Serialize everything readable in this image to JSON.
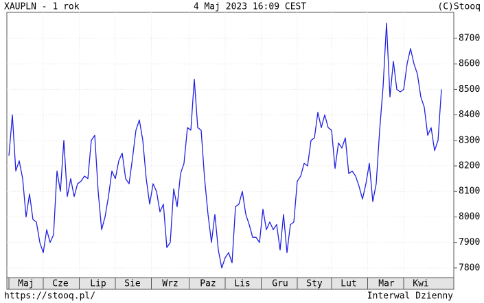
{
  "chart_data": {
    "type": "line",
    "title": "XAUPLN - 1 rok",
    "date": "4 Maj 2023 16:09 CEST",
    "source": "(C)Stooq",
    "url": "https://stooq.pl/",
    "interval": "Interwal Dzienny",
    "categories": [
      null,
      null,
      null,
      null,
      null,
      "Maj",
      null,
      null,
      null,
      null,
      null,
      null,
      null,
      null,
      null,
      "Cze",
      null,
      null,
      null,
      null,
      null,
      null,
      null,
      null,
      null,
      null,
      "Lip",
      null,
      null,
      null,
      null,
      null,
      null,
      null,
      null,
      null,
      "Sie",
      null,
      null,
      null,
      null,
      null,
      null,
      null,
      null,
      null,
      null,
      "Wrz",
      null,
      null,
      null,
      null,
      null,
      null,
      null,
      null,
      null,
      null,
      "Paz",
      null,
      null,
      null,
      null,
      null,
      null,
      null,
      null,
      null,
      "Lis",
      null,
      null,
      null,
      null,
      null,
      null,
      null,
      null,
      null,
      null,
      "Gru",
      null,
      null,
      null,
      null,
      null,
      null,
      null,
      null,
      null,
      "Sty",
      null,
      null,
      null,
      null,
      null,
      null,
      null,
      null,
      null,
      "Lut",
      null,
      null,
      null,
      null,
      null,
      null,
      null,
      null,
      null,
      null,
      "Mar",
      null,
      null,
      null,
      null,
      null,
      null,
      null,
      null,
      null,
      "Kwi",
      null,
      null,
      null,
      null,
      null,
      null
    ],
    "values": [
      8240,
      8400,
      8180,
      8220,
      8150,
      8000,
      8090,
      7990,
      7980,
      7900,
      7860,
      7950,
      7900,
      7930,
      8180,
      8100,
      8300,
      8080,
      8150,
      8080,
      8130,
      8140,
      8160,
      8150,
      8300,
      8320,
      8100,
      7950,
      8000,
      8080,
      8180,
      8150,
      8220,
      8250,
      8150,
      8130,
      8230,
      8340,
      8380,
      8300,
      8150,
      8050,
      8130,
      8100,
      8020,
      8050,
      7880,
      7900,
      8110,
      8040,
      8170,
      8210,
      8350,
      8340,
      8540,
      8350,
      8340,
      8150,
      8010,
      7900,
      8010,
      7870,
      7800,
      7840,
      7860,
      7820,
      8040,
      8050,
      8100,
      8010,
      7970,
      7920,
      7920,
      7900,
      8030,
      7950,
      7980,
      7950,
      7970,
      7870,
      8010,
      7860,
      7970,
      7980,
      8140,
      8160,
      8210,
      8200,
      8300,
      8310,
      8410,
      8350,
      8400,
      8350,
      8340,
      8190,
      8290,
      8270,
      8310,
      8170,
      8180,
      8160,
      8120,
      8070,
      8130,
      8210,
      8060,
      8130,
      8340,
      8510,
      8760,
      8470,
      8610,
      8500,
      8490,
      8500,
      8600,
      8660,
      8600,
      8560,
      8470,
      8430,
      8320,
      8350,
      8260,
      8300,
      8500
    ],
    "color": "#1f1fe0",
    "ylim": [
      7762,
      8802
    ],
    "yticks": [
      7800,
      7900,
      8000,
      8100,
      8200,
      8300,
      8400,
      8500,
      8600,
      8700
    ],
    "grid": true
  }
}
